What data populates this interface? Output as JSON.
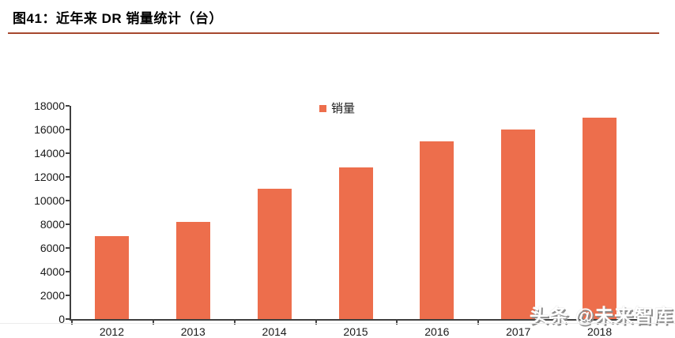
{
  "header": {
    "title": "图41：近年来 DR 销量统计（台）"
  },
  "watermark": {
    "text": "头条 @未来智库"
  },
  "chart_data": {
    "type": "bar",
    "title": "图41：近年来 DR 销量统计（台）",
    "categories": [
      "2012",
      "2013",
      "2014",
      "2015",
      "2016",
      "2017",
      "2018"
    ],
    "series": [
      {
        "name": "销量",
        "values": [
          7000,
          8200,
          11000,
          12800,
          15000,
          16000,
          17000
        ]
      }
    ],
    "xlabel": "",
    "ylabel": "",
    "ylim": [
      0,
      18000
    ],
    "ytick_step": 2000,
    "grid": false,
    "legend_position": "top-center"
  },
  "colors": {
    "bar": "#ED6E4C",
    "axis": "#404040",
    "title_rule": "#A6472E"
  }
}
